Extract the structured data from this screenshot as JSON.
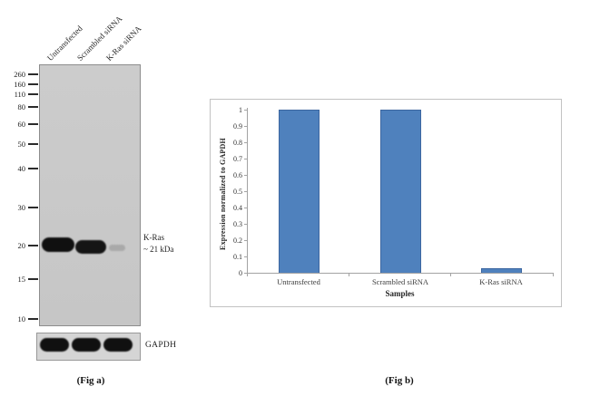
{
  "panel_a": {
    "caption": "(Fig a)",
    "lane_labels": [
      "Untransfected",
      "Scrambled siRNA",
      "K-Ras siRNA"
    ],
    "mw_marker_labels": [
      "260",
      "160",
      "110",
      "80",
      "60",
      "50",
      "40",
      "30",
      "20",
      "15",
      "10"
    ],
    "band_annotation_line1": "K-Ras",
    "band_annotation_line2": "~ 21 kDa",
    "loading_control_label": "GAPDH",
    "kras_band_relative_intensities": [
      1.0,
      0.97,
      0.08
    ],
    "gapdh_band_relative_intensities": [
      1.0,
      1.0,
      1.0
    ]
  },
  "panel_b": {
    "caption": "(Fig b)"
  },
  "chart_data": {
    "type": "bar",
    "categories": [
      "Untransfected",
      "Scrambled siRNA",
      "K-Ras siRNA"
    ],
    "values": [
      1.0,
      1.0,
      0.03
    ],
    "title": "",
    "xlabel": "Samples",
    "ylabel": "Expression  normalized to GAPDH",
    "ylim": [
      0,
      1
    ],
    "ytick_step": 0.1,
    "bar_color": "#4f81bd",
    "grid": false,
    "legend": "none"
  }
}
